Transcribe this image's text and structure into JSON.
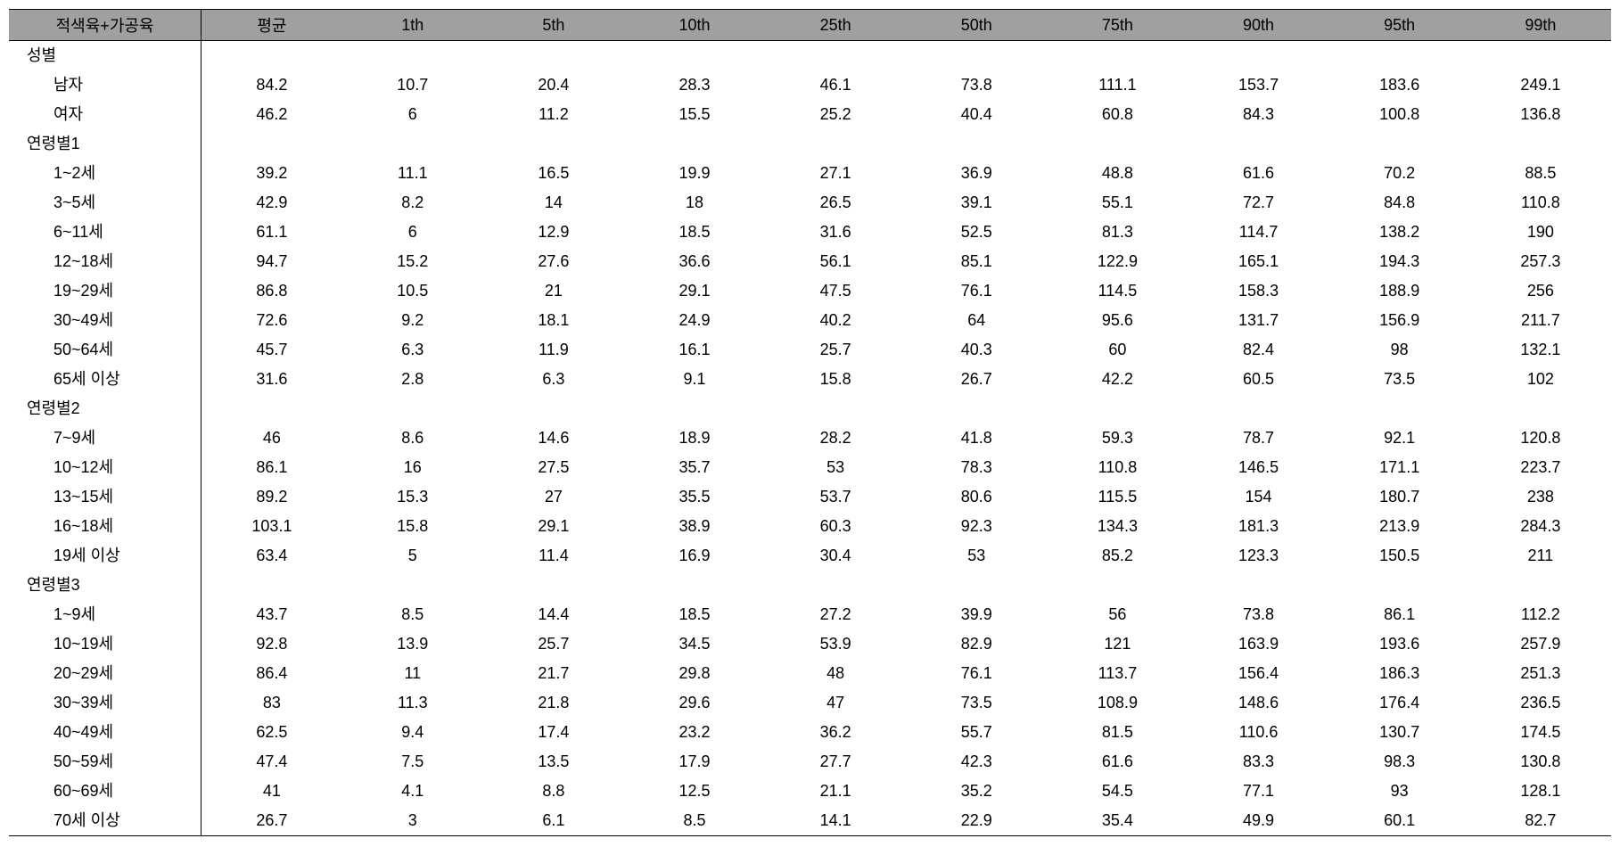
{
  "table": {
    "columns": [
      "적색육+가공육",
      "평균",
      "1th",
      "5th",
      "10th",
      "25th",
      "50th",
      "75th",
      "90th",
      "95th",
      "99th"
    ],
    "column_widths": [
      "12%",
      "8.8%",
      "8.8%",
      "8.8%",
      "8.8%",
      "8.8%",
      "8.8%",
      "8.8%",
      "8.8%",
      "8.8%",
      "8.8%"
    ],
    "header_bg_color": "#a0a0a0",
    "border_color": "#000000",
    "font_size": 18,
    "sections": [
      {
        "title": "성별",
        "rows": [
          {
            "label": "남자",
            "values": [
              "84.2",
              "10.7",
              "20.4",
              "28.3",
              "46.1",
              "73.8",
              "111.1",
              "153.7",
              "183.6",
              "249.1"
            ]
          },
          {
            "label": "여자",
            "values": [
              "46.2",
              "6",
              "11.2",
              "15.5",
              "25.2",
              "40.4",
              "60.8",
              "84.3",
              "100.8",
              "136.8"
            ]
          }
        ]
      },
      {
        "title": "연령별1",
        "rows": [
          {
            "label": "1~2세",
            "values": [
              "39.2",
              "11.1",
              "16.5",
              "19.9",
              "27.1",
              "36.9",
              "48.8",
              "61.6",
              "70.2",
              "88.5"
            ]
          },
          {
            "label": "3~5세",
            "values": [
              "42.9",
              "8.2",
              "14",
              "18",
              "26.5",
              "39.1",
              "55.1",
              "72.7",
              "84.8",
              "110.8"
            ]
          },
          {
            "label": "6~11세",
            "values": [
              "61.1",
              "6",
              "12.9",
              "18.5",
              "31.6",
              "52.5",
              "81.3",
              "114.7",
              "138.2",
              "190"
            ]
          },
          {
            "label": "12~18세",
            "values": [
              "94.7",
              "15.2",
              "27.6",
              "36.6",
              "56.1",
              "85.1",
              "122.9",
              "165.1",
              "194.3",
              "257.3"
            ]
          },
          {
            "label": "19~29세",
            "values": [
              "86.8",
              "10.5",
              "21",
              "29.1",
              "47.5",
              "76.1",
              "114.5",
              "158.3",
              "188.9",
              "256"
            ]
          },
          {
            "label": "30~49세",
            "values": [
              "72.6",
              "9.2",
              "18.1",
              "24.9",
              "40.2",
              "64",
              "95.6",
              "131.7",
              "156.9",
              "211.7"
            ]
          },
          {
            "label": "50~64세",
            "values": [
              "45.7",
              "6.3",
              "11.9",
              "16.1",
              "25.7",
              "40.3",
              "60",
              "82.4",
              "98",
              "132.1"
            ]
          },
          {
            "label": "65세 이상",
            "values": [
              "31.6",
              "2.8",
              "6.3",
              "9.1",
              "15.8",
              "26.7",
              "42.2",
              "60.5",
              "73.5",
              "102"
            ]
          }
        ]
      },
      {
        "title": "연령별2",
        "rows": [
          {
            "label": "7~9세",
            "values": [
              "46",
              "8.6",
              "14.6",
              "18.9",
              "28.2",
              "41.8",
              "59.3",
              "78.7",
              "92.1",
              "120.8"
            ]
          },
          {
            "label": "10~12세",
            "values": [
              "86.1",
              "16",
              "27.5",
              "35.7",
              "53",
              "78.3",
              "110.8",
              "146.5",
              "171.1",
              "223.7"
            ]
          },
          {
            "label": "13~15세",
            "values": [
              "89.2",
              "15.3",
              "27",
              "35.5",
              "53.7",
              "80.6",
              "115.5",
              "154",
              "180.7",
              "238"
            ]
          },
          {
            "label": "16~18세",
            "values": [
              "103.1",
              "15.8",
              "29.1",
              "38.9",
              "60.3",
              "92.3",
              "134.3",
              "181.3",
              "213.9",
              "284.3"
            ]
          },
          {
            "label": "19세 이상",
            "values": [
              "63.4",
              "5",
              "11.4",
              "16.9",
              "30.4",
              "53",
              "85.2",
              "123.3",
              "150.5",
              "211"
            ]
          }
        ]
      },
      {
        "title": "연령별3",
        "rows": [
          {
            "label": "1~9세",
            "values": [
              "43.7",
              "8.5",
              "14.4",
              "18.5",
              "27.2",
              "39.9",
              "56",
              "73.8",
              "86.1",
              "112.2"
            ]
          },
          {
            "label": "10~19세",
            "values": [
              "92.8",
              "13.9",
              "25.7",
              "34.5",
              "53.9",
              "82.9",
              "121",
              "163.9",
              "193.6",
              "257.9"
            ]
          },
          {
            "label": "20~29세",
            "values": [
              "86.4",
              "11",
              "21.7",
              "29.8",
              "48",
              "76.1",
              "113.7",
              "156.4",
              "186.3",
              "251.3"
            ]
          },
          {
            "label": "30~39세",
            "values": [
              "83",
              "11.3",
              "21.8",
              "29.6",
              "47",
              "73.5",
              "108.9",
              "148.6",
              "176.4",
              "236.5"
            ]
          },
          {
            "label": "40~49세",
            "values": [
              "62.5",
              "9.4",
              "17.4",
              "23.2",
              "36.2",
              "55.7",
              "81.5",
              "110.6",
              "130.7",
              "174.5"
            ]
          },
          {
            "label": "50~59세",
            "values": [
              "47.4",
              "7.5",
              "13.5",
              "17.9",
              "27.7",
              "42.3",
              "61.6",
              "83.3",
              "98.3",
              "130.8"
            ]
          },
          {
            "label": "60~69세",
            "values": [
              "41",
              "4.1",
              "8.8",
              "12.5",
              "21.1",
              "35.2",
              "54.5",
              "77.1",
              "93",
              "128.1"
            ]
          },
          {
            "label": "70세 이상",
            "values": [
              "26.7",
              "3",
              "6.1",
              "8.5",
              "14.1",
              "22.9",
              "35.4",
              "49.9",
              "60.1",
              "82.7"
            ]
          }
        ]
      }
    ]
  }
}
